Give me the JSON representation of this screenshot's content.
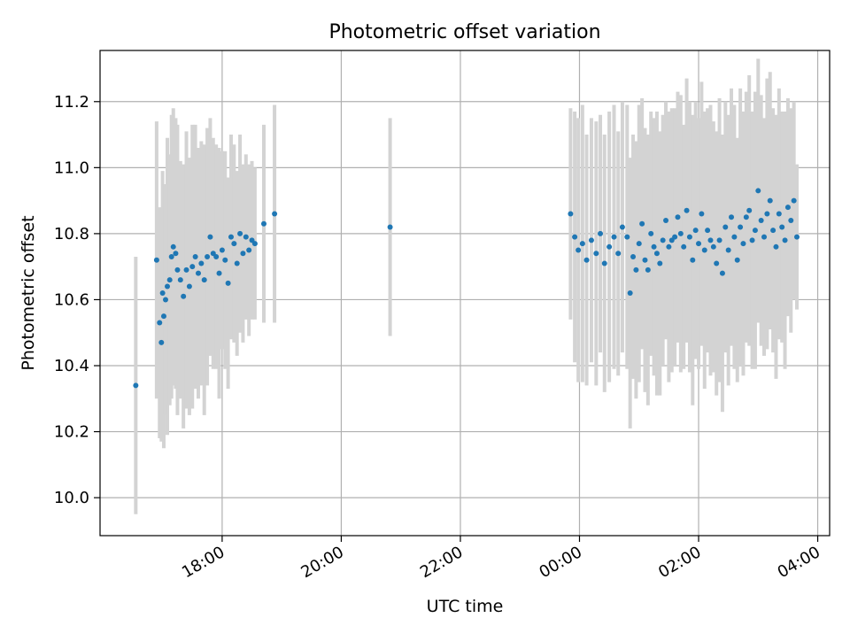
{
  "chart_data": {
    "type": "scatter",
    "title": "Photometric offset variation",
    "xlabel": "UTC time",
    "ylabel": "Photometric offset",
    "x_tick_labels": [
      "18:00",
      "20:00",
      "22:00",
      "00:00",
      "02:00",
      "04:00"
    ],
    "x_tick_hours": [
      18,
      20,
      22,
      24,
      26,
      28
    ],
    "xlim_hours": [
      15.95,
      28.2
    ],
    "y_ticks": [
      10.0,
      10.2,
      10.4,
      10.6,
      10.8,
      11.0,
      11.2
    ],
    "y_tick_labels": [
      "10.0",
      "10.2",
      "10.4",
      "10.6",
      "10.8",
      "11.0",
      "11.2"
    ],
    "ylim": [
      9.885,
      11.355
    ],
    "grid": true,
    "legend": "none",
    "colors": {
      "points": "#1f77b4",
      "errorbars": "#d3d3d3",
      "grid": "#b0b0b0",
      "axes": "#000000"
    },
    "series": [
      {
        "x_hours": [
          16.55,
          16.9,
          16.95,
          16.98,
          17.0,
          17.02,
          17.05,
          17.08,
          17.12,
          17.15,
          17.18,
          17.22,
          17.25,
          17.3,
          17.35,
          17.4,
          17.45,
          17.5,
          17.55,
          17.6,
          17.65,
          17.7,
          17.75,
          17.8,
          17.85,
          17.9,
          17.95,
          18.0,
          18.05,
          18.1,
          18.15,
          18.2,
          18.25,
          18.3,
          18.35,
          18.4,
          18.45,
          18.5,
          18.55,
          18.7,
          18.88,
          20.82,
          23.85,
          23.92,
          23.98,
          24.05,
          24.12,
          24.2,
          24.28,
          24.35,
          24.42,
          24.5,
          24.58,
          24.65,
          24.72,
          24.8,
          24.85,
          24.9,
          24.95,
          25.0,
          25.05,
          25.1,
          25.15,
          25.2,
          25.25,
          25.3,
          25.35,
          25.4,
          25.45,
          25.5,
          25.55,
          25.6,
          25.65,
          25.7,
          25.75,
          25.8,
          25.85,
          25.9,
          25.95,
          26.0,
          26.05,
          26.1,
          26.15,
          26.2,
          26.25,
          26.3,
          26.35,
          26.4,
          26.45,
          26.5,
          26.55,
          26.6,
          26.65,
          26.7,
          26.75,
          26.8,
          26.85,
          26.9,
          26.95,
          27.0,
          27.05,
          27.1,
          27.15,
          27.2,
          27.25,
          27.3,
          27.35,
          27.4,
          27.45,
          27.5,
          27.55,
          27.6,
          27.65
        ],
        "y": [
          10.34,
          10.72,
          10.53,
          10.47,
          10.62,
          10.55,
          10.6,
          10.64,
          10.66,
          10.73,
          10.76,
          10.74,
          10.69,
          10.66,
          10.61,
          10.69,
          10.64,
          10.7,
          10.73,
          10.68,
          10.71,
          10.66,
          10.73,
          10.79,
          10.74,
          10.73,
          10.68,
          10.75,
          10.72,
          10.65,
          10.79,
          10.77,
          10.71,
          10.8,
          10.74,
          10.79,
          10.75,
          10.78,
          10.77,
          10.83,
          10.86,
          10.82,
          10.86,
          10.79,
          10.75,
          10.77,
          10.72,
          10.78,
          10.74,
          10.8,
          10.71,
          10.76,
          10.79,
          10.74,
          10.82,
          10.79,
          10.62,
          10.73,
          10.69,
          10.77,
          10.83,
          10.72,
          10.69,
          10.8,
          10.76,
          10.74,
          10.71,
          10.78,
          10.84,
          10.76,
          10.78,
          10.79,
          10.85,
          10.8,
          10.76,
          10.87,
          10.79,
          10.72,
          10.81,
          10.77,
          10.86,
          10.75,
          10.81,
          10.78,
          10.76,
          10.71,
          10.78,
          10.68,
          10.82,
          10.75,
          10.85,
          10.79,
          10.72,
          10.82,
          10.77,
          10.85,
          10.87,
          10.78,
          10.81,
          10.93,
          10.84,
          10.79,
          10.86,
          10.9,
          10.81,
          10.76,
          10.86,
          10.82,
          10.78,
          10.88,
          10.84,
          10.9,
          10.79
        ],
        "err": [
          0.39,
          0.42,
          0.35,
          0.3,
          0.37,
          0.4,
          0.35,
          0.45,
          0.38,
          0.43,
          0.42,
          0.41,
          0.44,
          0.36,
          0.4,
          0.42,
          0.39,
          0.43,
          0.4,
          0.38,
          0.37,
          0.41,
          0.39,
          0.36,
          0.35,
          0.34,
          0.38,
          0.3,
          0.33,
          0.32,
          0.31,
          0.3,
          0.28,
          0.3,
          0.27,
          0.25,
          0.26,
          0.24,
          0.23,
          0.3,
          0.33,
          0.33,
          0.32,
          0.38,
          0.4,
          0.42,
          0.38,
          0.37,
          0.4,
          0.36,
          0.39,
          0.41,
          0.4,
          0.37,
          0.38,
          0.4,
          0.41,
          0.37,
          0.39,
          0.42,
          0.38,
          0.4,
          0.41,
          0.37,
          0.39,
          0.43,
          0.4,
          0.38,
          0.36,
          0.41,
          0.4,
          0.39,
          0.38,
          0.42,
          0.37,
          0.4,
          0.41,
          0.44,
          0.39,
          0.38,
          0.4,
          0.42,
          0.37,
          0.41,
          0.38,
          0.4,
          0.43,
          0.42,
          0.38,
          0.41,
          0.39,
          0.4,
          0.37,
          0.42,
          0.4,
          0.38,
          0.41,
          0.39,
          0.42,
          0.4,
          0.38,
          0.36,
          0.41,
          0.39,
          0.37,
          0.4,
          0.38,
          0.35,
          0.39,
          0.33,
          0.34,
          0.3,
          0.22
        ]
      }
    ]
  }
}
